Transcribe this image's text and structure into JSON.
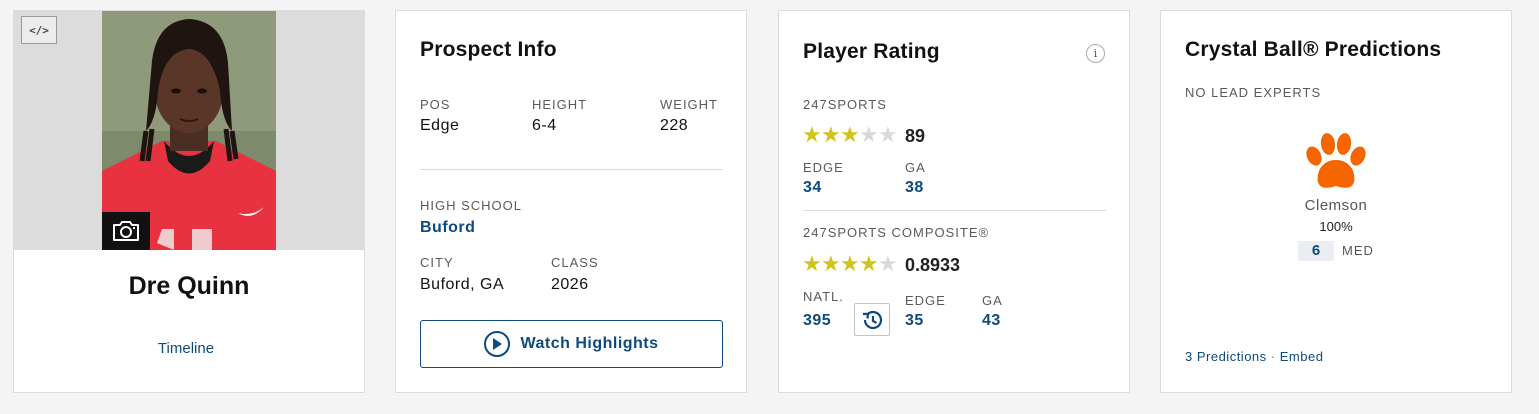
{
  "player": {
    "name": "Dre Quinn",
    "timeline_label": "Timeline"
  },
  "prospect_info": {
    "title": "Prospect Info",
    "pos_label": "POS",
    "pos_value": "Edge",
    "height_label": "HEIGHT",
    "height_value": "6-4",
    "weight_label": "WEIGHT",
    "weight_value": "228",
    "high_school_label": "HIGH SCHOOL",
    "high_school_value": "Buford",
    "city_label": "CITY",
    "city_value": "Buford, GA",
    "class_label": "CLASS",
    "class_value": "2026",
    "watch_label": "Watch Highlights"
  },
  "player_rating": {
    "title": "Player Rating",
    "info_glyph": "i",
    "s247_label": "247SPORTS",
    "s247_stars": 3,
    "s247_rating": "89",
    "s247_edge_label": "EDGE",
    "s247_edge_value": "34",
    "s247_ga_label": "GA",
    "s247_ga_value": "38",
    "composite_label": "247SPORTS COMPOSITE®",
    "composite_stars": 4,
    "composite_rating": "0.8933",
    "natl_label": "NATL.",
    "natl_value": "395",
    "comp_edge_label": "EDGE",
    "comp_edge_value": "35",
    "comp_ga_label": "GA",
    "comp_ga_value": "43"
  },
  "crystal_ball": {
    "title": "Crystal Ball® Predictions",
    "no_lead": "NO LEAD EXPERTS",
    "team": "Clemson",
    "percent": "100%",
    "med_count": "6",
    "med_label": "MED",
    "predictions_link": "3 Predictions",
    "separator": "·",
    "embed_link": "Embed"
  },
  "colors": {
    "link_blue": "#0d4a7d",
    "star_gold": "#d1c41f",
    "clemson_orange": "#f56600",
    "jersey_red": "#e8323f"
  },
  "icons": {
    "embed": "code-icon",
    "camera": "camera-icon",
    "play": "play-circle-icon",
    "info": "info-icon",
    "history": "history-icon",
    "team_logo": "tiger-paw-icon"
  }
}
